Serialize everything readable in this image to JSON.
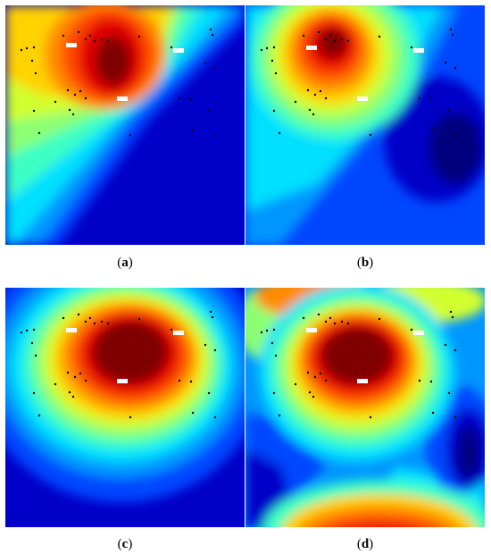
{
  "panels": [
    {
      "id": "a",
      "label": "a",
      "tags": [
        "",
        "",
        ""
      ]
    },
    {
      "id": "b",
      "label": "b",
      "tags": [
        "",
        "",
        ""
      ]
    },
    {
      "id": "c",
      "label": "c",
      "tags": [
        "",
        "",
        ""
      ]
    },
    {
      "id": "d",
      "label": "d",
      "tags": [
        "",
        "",
        ""
      ]
    }
  ],
  "colormap": {
    "name": "jet",
    "stops": [
      "#00007f",
      "#0000c8",
      "#0046ff",
      "#0096ff",
      "#00e0ff",
      "#3cffc3",
      "#8cff73",
      "#d2ff2d",
      "#ffd200",
      "#ff8c00",
      "#ff4600",
      "#e00000",
      "#7f0000"
    ]
  }
}
